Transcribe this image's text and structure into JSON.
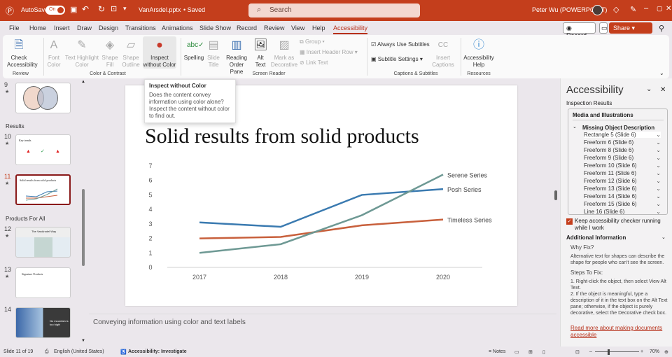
{
  "titlebar": {
    "autosave": "AutoSave",
    "toggle": "On",
    "filename": "VanArsdel.pptx",
    "saved": "• Saved",
    "search_placeholder": "Search",
    "user": "Peter Wu (POWERPOINT)"
  },
  "menu": {
    "tabs": [
      "File",
      "Home",
      "Insert",
      "Draw",
      "Design",
      "Transitions",
      "Animations",
      "Slide Show",
      "Record",
      "Review",
      "View",
      "Help",
      "Accessibility"
    ],
    "record": "Record",
    "share": "Share"
  },
  "ribbon": {
    "review": {
      "check": "Check Accessibility",
      "group": "Review"
    },
    "color": {
      "font_color": "Font Color",
      "text_highlight": "Text Highlight Color",
      "shape_fill": "Shape Fill",
      "shape_outline": "Shape Outline",
      "inspect": "Inspect without Color",
      "group": "Color & Contrast"
    },
    "screen_reader": {
      "spelling": "Spelling",
      "slide_title": "Slide Title",
      "reading_order": "Reading Order Pane",
      "alt_text": "Alt Text",
      "mark_decorative": "Mark as Decorative",
      "group_btn": "Group",
      "insert_header_row": "Insert Header Row",
      "link_text": "Link Text",
      "group": "Screen Reader"
    },
    "captions": {
      "always_use": "Always Use Subtitles",
      "subtitle_settings": "Subtitle Settings",
      "insert_captions": "Insert Captions",
      "group": "Captions & Subtitles"
    },
    "resources": {
      "help": "Accessibility Help",
      "group": "Resources"
    }
  },
  "tooltip": {
    "title": "Inspect without Color",
    "body": "Does the content convey information using color alone? Inspect the content without color to find out."
  },
  "thumbnails": {
    "sections": [
      "Results",
      "Products For All"
    ],
    "slides": [
      {
        "num": "9"
      },
      {
        "num": "10",
        "title": "Key trends"
      },
      {
        "num": "11",
        "title": "Solid results from solid products"
      },
      {
        "num": "12",
        "title": "The VanArsdel Way"
      },
      {
        "num": "13",
        "title": "Signature Products"
      },
      {
        "num": "14",
        "title": "No mountain is too high!"
      }
    ]
  },
  "slide": {
    "title": "Solid results from solid products"
  },
  "chart_data": {
    "type": "line",
    "categories": [
      "2017",
      "2018",
      "2019",
      "2020"
    ],
    "yticks": [
      "0",
      "1",
      "2",
      "3",
      "4",
      "5",
      "6",
      "7"
    ],
    "ylim": [
      0,
      7
    ],
    "grid": false,
    "series": [
      {
        "name": "Posh Series",
        "values": [
          3.1,
          2.8,
          5.0,
          5.4
        ],
        "color": "#3a7ab0"
      },
      {
        "name": "Timeless Series",
        "values": [
          2.0,
          2.1,
          2.9,
          3.3
        ],
        "color": "#c8603c"
      },
      {
        "name": "Serene Series",
        "values": [
          1.0,
          1.6,
          3.6,
          6.4
        ],
        "color": "#6e9994"
      }
    ]
  },
  "notes": "Conveying information using color and text labels",
  "pane": {
    "title": "Accessibility",
    "inspection": "Inspection Results",
    "category": "Media and Illustrations",
    "issue": "Missing Object Description",
    "items": [
      "Rectangle 5  (Slide 6)",
      "Freeform 6  (Slide 6)",
      "Freeform 8  (Slide 6)",
      "Freeform 9  (Slide 6)",
      "Freeform 10  (Slide 6)",
      "Freeform 11  (Slide 6)",
      "Freeform 12  (Slide 6)",
      "Freeform 13  (Slide 6)",
      "Freeform 14  (Slide 6)",
      "Freeform 15  (Slide 6)",
      "Line 16  (Slide 6)"
    ],
    "keep_running": "Keep accessibility checker running while I work",
    "additional": "Additional Information",
    "why_fix": "Why Fix?",
    "why_text": "Alternative text for shapes can describe the shape for people who can't see the screen.",
    "steps": "Steps To Fix:",
    "step1": "1. Right-click the object, then select View Alt Text.",
    "step2": "2. If the object is meaningful, type a description of it in the text box on the Alt Text pane; otherwise, if the object is purely decorative, select the Decorative check box.",
    "link": "Read more about making documents accessible"
  },
  "status": {
    "slide": "Slide 11 of 19",
    "language": "English (United States)",
    "accessibility": "Accessibility: Investigate",
    "notes": "Notes",
    "zoom": "70%"
  },
  "colors": {
    "accent": "#c43e1c"
  }
}
